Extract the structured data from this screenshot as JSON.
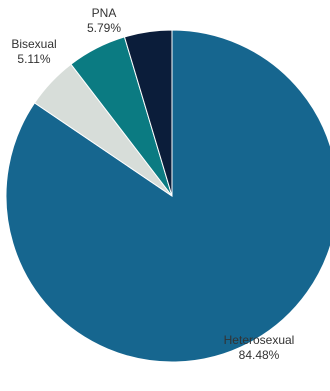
{
  "chart_data": {
    "type": "pie",
    "title": "",
    "slices": [
      {
        "label": "Heterosexual",
        "value": 84.48,
        "value_label": "84.48%",
        "color": "#16668f"
      },
      {
        "label": "Bisexual",
        "value": 5.11,
        "value_label": "5.11%",
        "color": "#d7ddd9"
      },
      {
        "label": "PNA",
        "value": 5.79,
        "value_label": "5.79%",
        "color": "#0b7b82"
      },
      {
        "label": "",
        "value": 4.62,
        "value_label": "",
        "color": "#0b1d3a"
      }
    ],
    "start_angle": "12 o'clock",
    "direction": "clockwise",
    "legend": "none",
    "labels": "outside"
  }
}
